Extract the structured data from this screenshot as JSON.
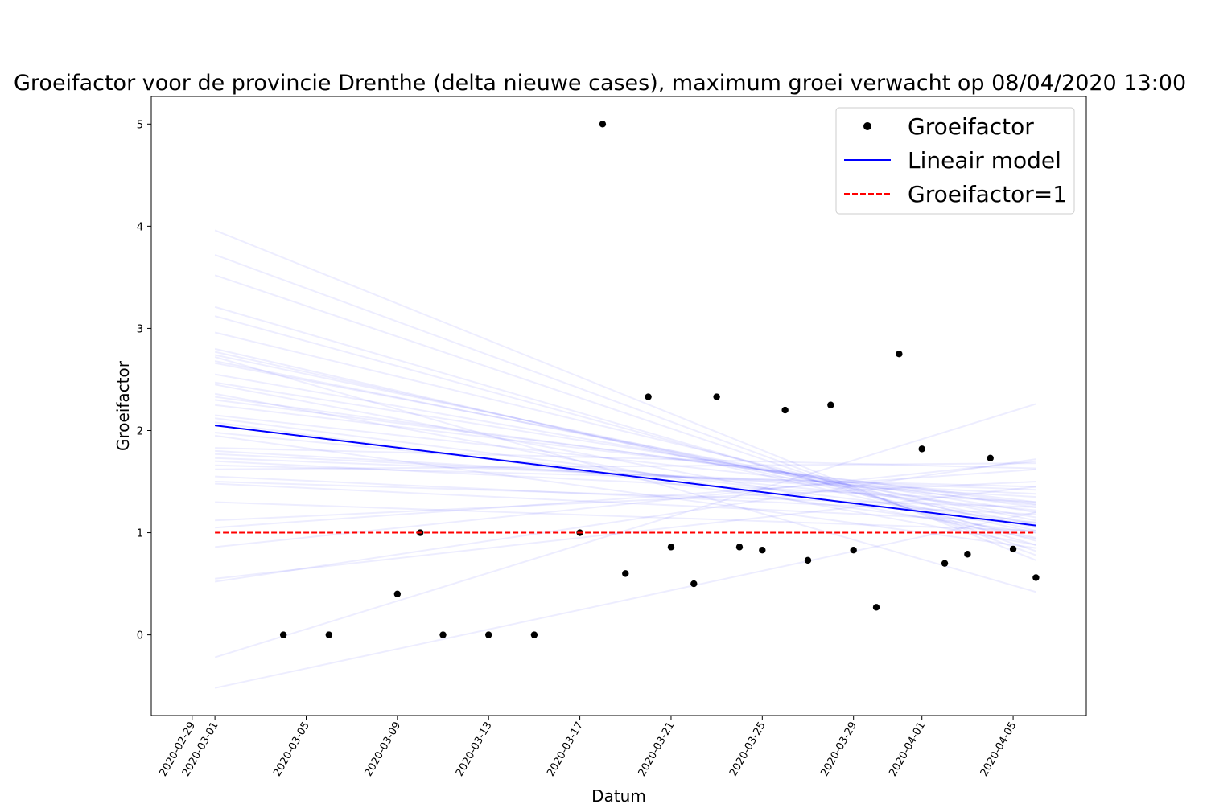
{
  "chart_data": {
    "type": "scatter",
    "title": "Groeifactor voor de provincie Drenthe (delta nieuwe cases), maximum groei verwacht op 08/04/2020 13:00",
    "xlabel": "Datum",
    "ylabel": "Groeifactor",
    "xlim": [
      "2020-02-27T05:00",
      "2020-04-08T05:00"
    ],
    "ylim": [
      -0.79,
      5.27
    ],
    "x_ticks": [
      "2020-02-29",
      "2020-03-01",
      "2020-03-05",
      "2020-03-09",
      "2020-03-13",
      "2020-03-17",
      "2020-03-21",
      "2020-03-25",
      "2020-03-29",
      "2020-04-01",
      "2020-04-05"
    ],
    "y_ticks": [
      0,
      1,
      2,
      3,
      4,
      5
    ],
    "grid": false,
    "legend_position": "top-right",
    "series": [
      {
        "name": "Groeifactor",
        "kind": "points",
        "color": "#000000",
        "points": [
          {
            "x": "2020-03-04",
            "y": 0
          },
          {
            "x": "2020-03-06",
            "y": 0
          },
          {
            "x": "2020-03-09",
            "y": 0.4
          },
          {
            "x": "2020-03-10",
            "y": 1.0
          },
          {
            "x": "2020-03-11",
            "y": 0
          },
          {
            "x": "2020-03-13",
            "y": 0
          },
          {
            "x": "2020-03-15",
            "y": 0
          },
          {
            "x": "2020-03-17",
            "y": 1.0
          },
          {
            "x": "2020-03-18",
            "y": 5.0
          },
          {
            "x": "2020-03-19",
            "y": 0.6
          },
          {
            "x": "2020-03-20",
            "y": 2.33
          },
          {
            "x": "2020-03-21",
            "y": 0.86
          },
          {
            "x": "2020-03-22",
            "y": 0.5
          },
          {
            "x": "2020-03-23",
            "y": 2.33
          },
          {
            "x": "2020-03-24",
            "y": 0.86
          },
          {
            "x": "2020-03-25",
            "y": 0.83
          },
          {
            "x": "2020-03-26",
            "y": 2.2
          },
          {
            "x": "2020-03-27",
            "y": 0.73
          },
          {
            "x": "2020-03-28",
            "y": 2.25
          },
          {
            "x": "2020-03-29",
            "y": 0.83
          },
          {
            "x": "2020-03-30",
            "y": 0.27
          },
          {
            "x": "2020-03-31",
            "y": 2.75
          },
          {
            "x": "2020-04-01",
            "y": 1.82
          },
          {
            "x": "2020-04-02",
            "y": 0.7
          },
          {
            "x": "2020-04-03",
            "y": 0.79
          },
          {
            "x": "2020-04-04",
            "y": 1.73
          },
          {
            "x": "2020-04-05",
            "y": 0.84
          },
          {
            "x": "2020-04-06",
            "y": 0.56
          }
        ]
      },
      {
        "name": "Lineair model",
        "kind": "line",
        "color": "#0000ff",
        "points": [
          {
            "x": "2020-03-01",
            "y": 2.05
          },
          {
            "x": "2020-04-06",
            "y": 1.07
          }
        ]
      },
      {
        "name": "Groeifactor=1",
        "kind": "dashed-line",
        "color": "#ff0000",
        "points": [
          {
            "x": "2020-03-01",
            "y": 1.0
          },
          {
            "x": "2020-04-06",
            "y": 1.0
          }
        ]
      }
    ],
    "bootstrap_lines": {
      "color": "#0000ff",
      "opacity": 0.07,
      "x_start": "2020-03-01",
      "x_end": "2020-04-06",
      "pairs": [
        [
          3.96,
          0.73
        ],
        [
          3.72,
          0.78
        ],
        [
          3.52,
          0.82
        ],
        [
          3.21,
          0.88
        ],
        [
          3.12,
          0.92
        ],
        [
          2.96,
          1.02
        ],
        [
          2.8,
          0.95
        ],
        [
          2.77,
          1.0
        ],
        [
          2.74,
          1.05
        ],
        [
          2.68,
          1.08
        ],
        [
          2.66,
          1.12
        ],
        [
          2.55,
          1.15
        ],
        [
          2.47,
          1.2
        ],
        [
          2.45,
          0.94
        ],
        [
          2.33,
          1.25
        ],
        [
          2.3,
          1.28
        ],
        [
          2.25,
          1.3
        ],
        [
          2.15,
          1.27
        ],
        [
          2.12,
          1.1
        ],
        [
          2.08,
          1.0
        ],
        [
          1.98,
          1.22
        ],
        [
          1.83,
          1.63
        ],
        [
          1.8,
          1.35
        ],
        [
          1.77,
          1.38
        ],
        [
          1.73,
          1.42
        ],
        [
          1.7,
          1.3
        ],
        [
          1.66,
          1.45
        ],
        [
          1.62,
          1.68
        ],
        [
          1.55,
          1.18
        ],
        [
          1.5,
          1.25
        ],
        [
          1.48,
          1.1
        ],
        [
          1.3,
          1.02
        ],
        [
          1.12,
          1.5
        ],
        [
          1.05,
          1.62
        ],
        [
          0.86,
          1.7
        ],
        [
          0.55,
          1.45
        ],
        [
          0.52,
          1.72
        ],
        [
          -0.22,
          2.26
        ],
        [
          -0.52,
          1.2
        ],
        [
          2.72,
          0.42
        ],
        [
          2.36,
          0.88
        ],
        [
          1.95,
          0.85
        ]
      ]
    }
  }
}
